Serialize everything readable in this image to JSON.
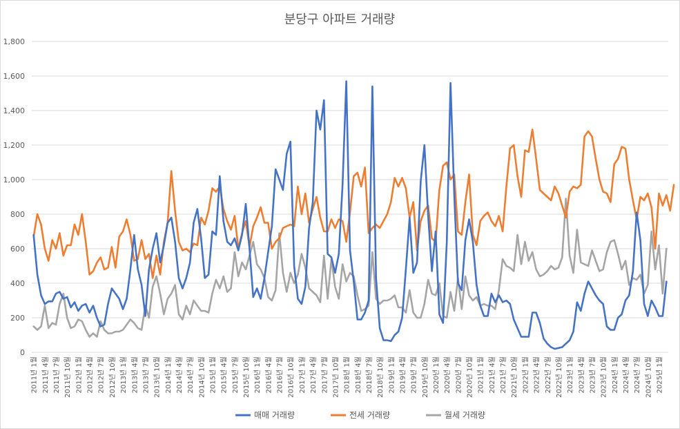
{
  "chart_data": {
    "type": "line",
    "title": "분당구 아파트 거래량",
    "xlabel": "",
    "ylabel": "",
    "ylim": [
      0,
      1800
    ],
    "yticks": [
      "0",
      "200",
      "400",
      "600",
      "800",
      "1,000",
      "1,200",
      "1,400",
      "1,600",
      "1,800"
    ],
    "grid": true,
    "legend_position": "bottom",
    "x_tick_labels": [
      "2011년 1월",
      "2011년 4월",
      "2011년 7월",
      "2011년 10월",
      "2012년 1월",
      "2012년 4월",
      "2012년 7월",
      "2012년 10월",
      "2013년 1월",
      "2013년 4월",
      "2013년 7월",
      "2013년 10월",
      "2014년 1월",
      "2014년 4월",
      "2014년 7월",
      "2014년 10월",
      "2015년 1월",
      "2015년 4월",
      "2015년 7월",
      "2015년 10월",
      "2016년 1월",
      "2016년 4월",
      "2016년 7월",
      "2016년 10월",
      "2017년 1월",
      "2017년 4월",
      "2017년 7월",
      "2017년 10월",
      "2018년 1월",
      "2018년 4월",
      "2018년 7월",
      "2018년 10월",
      "2019년 1월",
      "2019년 4월",
      "2019년 7월",
      "2019년 10월",
      "2020년 1월",
      "2020년 4월",
      "2020년 7월",
      "2020년 10월",
      "2021년 1월",
      "2021년 4월",
      "2021년 7월",
      "2021년 10월",
      "2022년 1월",
      "2022년 4월",
      "2022년 7월",
      "2022년 10월",
      "2023년 1월",
      "2023년 4월",
      "2023년 7월",
      "2023년 10월",
      "2024년 1월",
      "2024년 4월",
      "2024년 7월",
      "2024년 10월",
      "2025년 1월"
    ],
    "series": [
      {
        "name": "매매 거래량",
        "color": "#4472c4",
        "values": [
          680,
          450,
          330,
          280,
          295,
          295,
          340,
          350,
          310,
          320,
          260,
          290,
          240,
          270,
          280,
          230,
          270,
          200,
          150,
          160,
          280,
          370,
          340,
          310,
          250,
          310,
          480,
          680,
          480,
          390,
          210,
          480,
          600,
          690,
          520,
          620,
          750,
          780,
          640,
          430,
          370,
          430,
          520,
          750,
          830,
          660,
          430,
          450,
          700,
          680,
          1020,
          760,
          640,
          620,
          660,
          590,
          680,
          860,
          600,
          320,
          370,
          310,
          430,
          580,
          730,
          1060,
          1000,
          940,
          1150,
          1220,
          500,
          310,
          280,
          380,
          720,
          870,
          1400,
          1290,
          1460,
          570,
          550,
          460,
          570,
          970,
          1570,
          590,
          410,
          190,
          190,
          230,
          300,
          1540,
          430,
          140,
          70,
          70,
          65,
          100,
          120,
          200,
          480,
          780,
          460,
          520,
          990,
          1200,
          790,
          470,
          700,
          220,
          170,
          640,
          1560,
          910,
          400,
          360,
          650,
          770,
          640,
          390,
          270,
          210,
          210,
          340,
          290,
          330,
          290,
          300,
          280,
          190,
          140,
          90,
          90,
          90,
          230,
          230,
          170,
          80,
          50,
          30,
          20,
          25,
          30,
          50,
          70,
          120,
          290,
          240,
          340,
          410,
          370,
          330,
          300,
          280,
          150,
          130,
          130,
          200,
          220,
          300,
          330,
          470,
          810,
          650,
          280,
          210,
          300,
          260,
          210,
          210,
          410
        ]
      },
      {
        "name": "전세 거래량",
        "color": "#ed7d31",
        "values": [
          670,
          800,
          740,
          600,
          530,
          650,
          600,
          690,
          560,
          620,
          620,
          740,
          680,
          800,
          640,
          450,
          470,
          520,
          550,
          480,
          490,
          610,
          490,
          670,
          700,
          770,
          680,
          530,
          540,
          650,
          540,
          570,
          430,
          560,
          450,
          640,
          750,
          1050,
          820,
          640,
          590,
          600,
          580,
          630,
          620,
          780,
          740,
          820,
          950,
          930,
          960,
          830,
          760,
          710,
          790,
          600,
          690,
          760,
          610,
          730,
          780,
          840,
          750,
          750,
          600,
          640,
          660,
          720,
          730,
          740,
          730,
          960,
          800,
          920,
          750,
          830,
          900,
          780,
          700,
          700,
          770,
          720,
          770,
          760,
          640,
          810,
          1020,
          1040,
          960,
          1070,
          690,
          720,
          740,
          720,
          760,
          800,
          870,
          1010,
          960,
          1010,
          950,
          780,
          870,
          590,
          760,
          820,
          850,
          660,
          640,
          940,
          1080,
          1100,
          1000,
          1030,
          700,
          680,
          870,
          1030,
          680,
          620,
          760,
          790,
          810,
          760,
          730,
          790,
          700,
          960,
          1180,
          1200,
          1020,
          900,
          1170,
          1160,
          1290,
          1120,
          940,
          920,
          900,
          880,
          960,
          920,
          850,
          780,
          930,
          960,
          950,
          970,
          1250,
          1280,
          1250,
          1120,
          1000,
          930,
          920,
          870,
          1090,
          1120,
          1190,
          1180,
          1000,
          880,
          770,
          900,
          880,
          920,
          840,
          600,
          920,
          850,
          910,
          820,
          970
        ]
      },
      {
        "name": "월세 거래량",
        "color": "#a5a5a5",
        "values": [
          150,
          130,
          150,
          270,
          140,
          170,
          160,
          280,
          340,
          200,
          140,
          150,
          190,
          180,
          130,
          90,
          110,
          90,
          180,
          130,
          110,
          110,
          120,
          120,
          130,
          160,
          190,
          170,
          140,
          130,
          270,
          200,
          380,
          440,
          340,
          220,
          310,
          340,
          390,
          220,
          190,
          270,
          220,
          300,
          270,
          240,
          240,
          230,
          340,
          420,
          370,
          440,
          350,
          370,
          580,
          440,
          520,
          480,
          560,
          640,
          510,
          480,
          430,
          320,
          300,
          360,
          690,
          460,
          350,
          460,
          400,
          450,
          570,
          490,
          370,
          350,
          330,
          290,
          560,
          310,
          540,
          380,
          310,
          510,
          410,
          460,
          440,
          330,
          240,
          250,
          270,
          580,
          310,
          280,
          300,
          300,
          310,
          330,
          260,
          260,
          230,
          360,
          230,
          200,
          200,
          280,
          420,
          340,
          330,
          400,
          210,
          200,
          350,
          240,
          430,
          250,
          440,
          330,
          300,
          320,
          270,
          280,
          270,
          270,
          250,
          360,
          540,
          500,
          490,
          470,
          680,
          510,
          640,
          530,
          580,
          480,
          440,
          450,
          470,
          500,
          480,
          490,
          550,
          890,
          560,
          460,
          710,
          520,
          510,
          500,
          590,
          530,
          470,
          480,
          580,
          640,
          650,
          570,
          480,
          530,
          390,
          430,
          420,
          450,
          340,
          390,
          700,
          480,
          620,
          340,
          600
        ]
      }
    ]
  }
}
